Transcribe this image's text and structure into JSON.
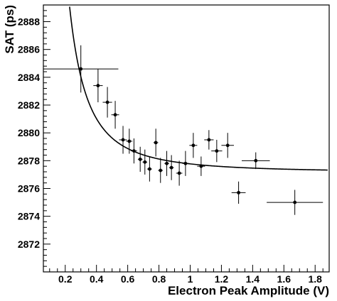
{
  "chart_data": {
    "type": "scatter",
    "title": "",
    "xlabel": "Electron Peak Amplitude (V)",
    "ylabel": "SAT (ps)",
    "xlim": [
      0.06,
      1.89
    ],
    "ylim": [
      2870.0,
      2889.2
    ],
    "x_ticks": [
      0.2,
      0.4,
      0.6,
      0.8,
      1.0,
      1.2,
      1.4,
      1.6,
      1.8
    ],
    "x_tick_labels": [
      "0.2",
      "0.4",
      "0.6",
      "0.8",
      "1",
      "1.2",
      "1.4",
      "1.6",
      "1.8"
    ],
    "y_ticks": [
      2872,
      2874,
      2876,
      2878,
      2880,
      2882,
      2884,
      2886,
      2888
    ],
    "y_tick_labels": [
      "2872",
      "2874",
      "2876",
      "2878",
      "2880",
      "2882",
      "2884",
      "2886",
      "2888"
    ],
    "grid": false,
    "series": [
      {
        "kind": "points_with_errors",
        "points": [
          {
            "x": 0.3,
            "y": 2884.6,
            "xerr": 0.24,
            "yerr": 1.7
          },
          {
            "x": 0.41,
            "y": 2883.4,
            "xerr": 0.03,
            "yerr": 1.2
          },
          {
            "x": 0.47,
            "y": 2882.2,
            "xerr": 0.03,
            "yerr": 1.1
          },
          {
            "x": 0.52,
            "y": 2881.3,
            "xerr": 0.025,
            "yerr": 1.0
          },
          {
            "x": 0.57,
            "y": 2879.5,
            "xerr": 0.025,
            "yerr": 1.0
          },
          {
            "x": 0.61,
            "y": 2879.4,
            "xerr": 0.02,
            "yerr": 0.9
          },
          {
            "x": 0.64,
            "y": 2878.7,
            "xerr": 0.02,
            "yerr": 0.9
          },
          {
            "x": 0.68,
            "y": 2878.1,
            "xerr": 0.015,
            "yerr": 0.9
          },
          {
            "x": 0.71,
            "y": 2877.9,
            "xerr": 0.015,
            "yerr": 0.9
          },
          {
            "x": 0.74,
            "y": 2877.4,
            "xerr": 0.015,
            "yerr": 0.9
          },
          {
            "x": 0.78,
            "y": 2879.3,
            "xerr": 0.015,
            "yerr": 1.0
          },
          {
            "x": 0.81,
            "y": 2877.3,
            "xerr": 0.015,
            "yerr": 0.9
          },
          {
            "x": 0.85,
            "y": 2877.8,
            "xerr": 0.015,
            "yerr": 0.9
          },
          {
            "x": 0.88,
            "y": 2877.5,
            "xerr": 0.015,
            "yerr": 0.9
          },
          {
            "x": 0.93,
            "y": 2877.1,
            "xerr": 0.02,
            "yerr": 0.9
          },
          {
            "x": 0.97,
            "y": 2877.8,
            "xerr": 0.02,
            "yerr": 0.9
          },
          {
            "x": 1.02,
            "y": 2879.1,
            "xerr": 0.025,
            "yerr": 0.9
          },
          {
            "x": 1.07,
            "y": 2877.6,
            "xerr": 0.025,
            "yerr": 0.7
          },
          {
            "x": 1.12,
            "y": 2879.5,
            "xerr": 0.03,
            "yerr": 0.7
          },
          {
            "x": 1.17,
            "y": 2878.7,
            "xerr": 0.035,
            "yerr": 0.8
          },
          {
            "x": 1.24,
            "y": 2879.1,
            "xerr": 0.04,
            "yerr": 0.9
          },
          {
            "x": 1.31,
            "y": 2875.7,
            "xerr": 0.045,
            "yerr": 0.8
          },
          {
            "x": 1.42,
            "y": 2878.0,
            "xerr": 0.09,
            "yerr": 0.6
          },
          {
            "x": 1.67,
            "y": 2875.0,
            "xerr": 0.18,
            "yerr": 0.9
          }
        ]
      },
      {
        "kind": "fit_curve",
        "function": "a + b / x^2",
        "parameters": {
          "a": 2877.15,
          "b": 0.62
        },
        "x_range": [
          0.2,
          1.88
        ]
      }
    ]
  }
}
